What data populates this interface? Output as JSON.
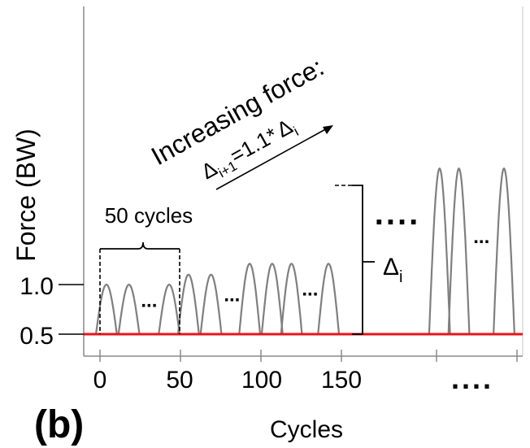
{
  "panel_label": "(b)",
  "colors": {
    "waveform": "#7f7f7f",
    "baseline": "#e8141b",
    "axes": "#8a8a8a",
    "annotation": "#000000"
  },
  "chart_data": {
    "type": "line",
    "xlabel": "Cycles",
    "ylabel": "Force (BW)",
    "xticks": [
      "0",
      "50",
      "100",
      "150"
    ],
    "yticks": [
      "0.5",
      "1.0"
    ],
    "x_gap_label": "....",
    "baseline": {
      "y": 0.5
    },
    "blocks": [
      {
        "peak": 1.0,
        "cycles": [
          4,
          18,
          43
        ],
        "pattern": [
          4,
          18,
          "...",
          43
        ]
      },
      {
        "peak": 1.1,
        "cycles": [
          55,
          69
        ],
        "pattern": [
          55,
          69,
          "..."
        ]
      },
      {
        "peak": 1.21,
        "cycles": [
          93,
          107,
          119,
          142
        ],
        "pattern": [
          93,
          107,
          119,
          "...",
          142
        ]
      },
      {
        "peak": 2.17,
        "cycles": [
          211,
          223,
          251
        ],
        "pattern": [
          211,
          223,
          "...",
          251
        ]
      }
    ],
    "block_gap_label": "....",
    "annotations": {
      "cycles_brace": "50 cycles",
      "increase_title": "Increasing force:",
      "increase_formula": {
        "base": "Δ",
        "sub1": "i+1",
        "mid": "=1.1*",
        "base2": "Δ",
        "sub2": "i"
      },
      "delta_label": {
        "base": "Δ",
        "sub": "i"
      }
    }
  }
}
